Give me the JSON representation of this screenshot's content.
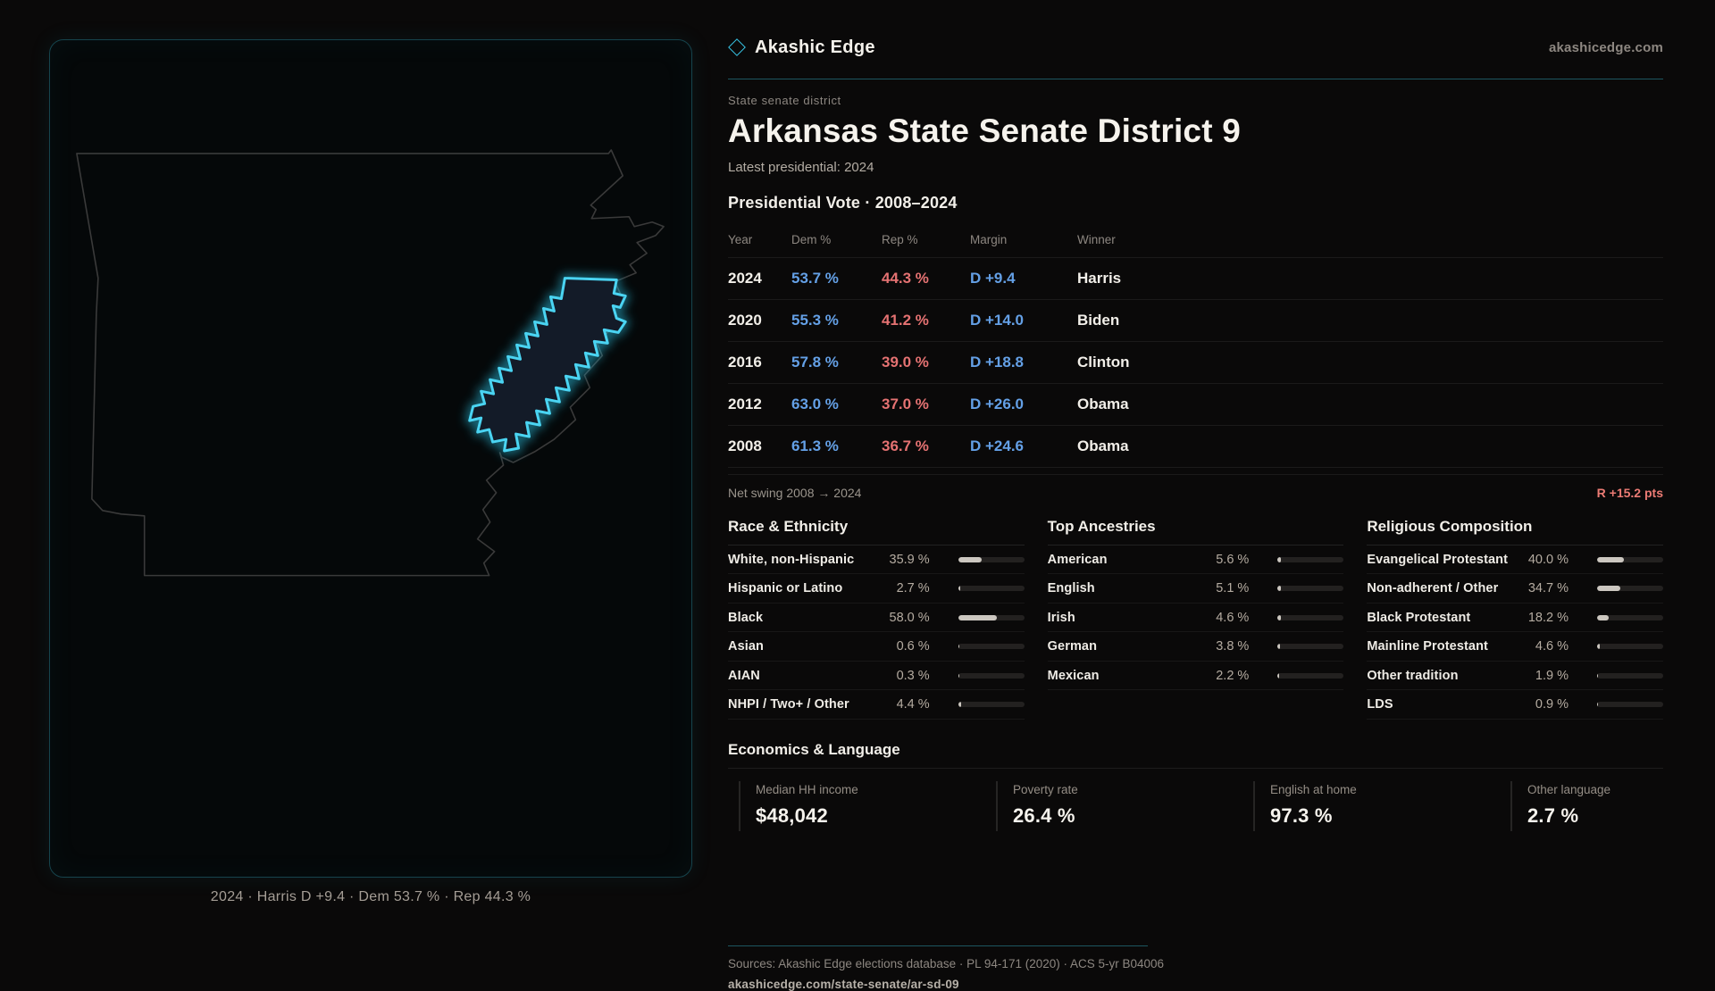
{
  "brand": {
    "name": "Akashic Edge",
    "domain": "akashicedge.com"
  },
  "page": {
    "eyebrow": "State senate district",
    "title": "Arkansas State Senate District 9",
    "subtitle": "Latest presidential: 2024"
  },
  "election_table": {
    "title": "Presidential Vote · 2008–2024",
    "columns": [
      "Year",
      "Dem %",
      "Rep %",
      "Margin",
      "Winner"
    ],
    "rows": [
      {
        "year": "2024",
        "dem": "53.7 %",
        "rep": "44.3 %",
        "margin": "D +9.4",
        "winner": "Harris"
      },
      {
        "year": "2020",
        "dem": "55.3 %",
        "rep": "41.2 %",
        "margin": "D +14.0",
        "winner": "Biden"
      },
      {
        "year": "2016",
        "dem": "57.8 %",
        "rep": "39.0 %",
        "margin": "D +18.8",
        "winner": "Clinton"
      },
      {
        "year": "2012",
        "dem": "63.0 %",
        "rep": "37.0 %",
        "margin": "D +26.0",
        "winner": "Obama"
      },
      {
        "year": "2008",
        "dem": "61.3 %",
        "rep": "36.7 %",
        "margin": "D +24.6",
        "winner": "Obama"
      }
    ],
    "net_swing_label": "Net swing 2008 → 2024",
    "net_swing_value": "R +15.2 pts"
  },
  "demographics": {
    "race": {
      "title": "Race & Ethnicity",
      "rows": [
        {
          "label": "White, non-Hispanic",
          "value": "35.9 %",
          "pct": 35.9
        },
        {
          "label": "Hispanic or Latino",
          "value": "2.7 %",
          "pct": 2.7
        },
        {
          "label": "Black",
          "value": "58.0 %",
          "pct": 58.0
        },
        {
          "label": "Asian",
          "value": "0.6 %",
          "pct": 0.6
        },
        {
          "label": "AIAN",
          "value": "0.3 %",
          "pct": 0.3
        },
        {
          "label": "NHPI / Two+ / Other",
          "value": "4.4 %",
          "pct": 4.4
        }
      ]
    },
    "ancestries": {
      "title": "Top Ancestries",
      "rows": [
        {
          "label": "American",
          "value": "5.6 %",
          "pct": 5.6
        },
        {
          "label": "English",
          "value": "5.1 %",
          "pct": 5.1
        },
        {
          "label": "Irish",
          "value": "4.6 %",
          "pct": 4.6
        },
        {
          "label": "German",
          "value": "3.8 %",
          "pct": 3.8
        },
        {
          "label": "Mexican",
          "value": "2.2 %",
          "pct": 2.2
        }
      ]
    },
    "religion": {
      "title": "Religious Composition",
      "rows": [
        {
          "label": "Evangelical Protestant",
          "value": "40.0 %",
          "pct": 40.0
        },
        {
          "label": "Non-adherent / Other",
          "value": "34.7 %",
          "pct": 34.7
        },
        {
          "label": "Black Protestant",
          "value": "18.2 %",
          "pct": 18.2
        },
        {
          "label": "Mainline Protestant",
          "value": "4.6 %",
          "pct": 4.6
        },
        {
          "label": "Other tradition",
          "value": "1.9 %",
          "pct": 1.9
        },
        {
          "label": "LDS",
          "value": "0.9 %",
          "pct": 0.9
        }
      ]
    }
  },
  "economics": {
    "title": "Economics & Language",
    "stats": [
      {
        "label": "Median HH income",
        "value": "$48,042"
      },
      {
        "label": "Poverty rate",
        "value": "26.4 %"
      },
      {
        "label": "English at home",
        "value": "97.3 %"
      },
      {
        "label": "Other language",
        "value": "2.7 %"
      }
    ]
  },
  "map": {
    "caption": "2024 · Harris D +9.4 · Dem 53.7 % · Rep 44.3 %"
  },
  "footer": {
    "sources": "Sources: Akashic Edge elections database · PL 94-171 (2020) · ACS 5-yr B04006",
    "permalink": "akashicedge.com/state-senate/ar-sd-09"
  },
  "colors": {
    "dem_blue": "#64a0e6",
    "rep_red": "#e57272",
    "accent_cyan": "#4ad4f2",
    "swing_red": "#ec7b74"
  }
}
